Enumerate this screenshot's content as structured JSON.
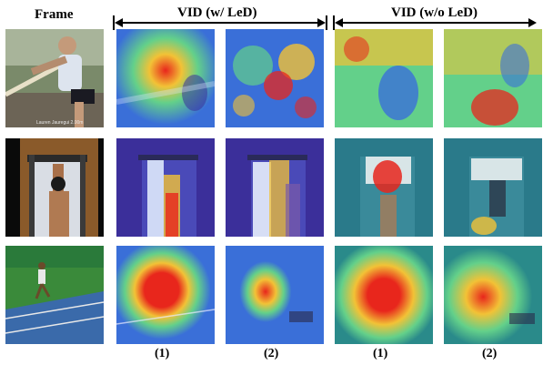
{
  "header": {
    "frame_label": "Frame",
    "group_with": "VID (w/ LeD)",
    "group_without": "VID (w/o LeD)"
  },
  "columns": {
    "with_1": "(1)",
    "with_2": "(2)",
    "without_1": "(1)",
    "without_2": "(2)"
  },
  "rows": [
    {
      "frame_caption": "Lauren Jauregui 2.00m"
    },
    {
      "frame_caption": ""
    },
    {
      "frame_caption": ""
    }
  ],
  "colors": {
    "heat_hot": "#e8261c",
    "heat_warm": "#f2c236",
    "heat_mid": "#63d08a",
    "heat_cool": "#3a6fd8",
    "heat_cold": "#3b2f9a"
  }
}
